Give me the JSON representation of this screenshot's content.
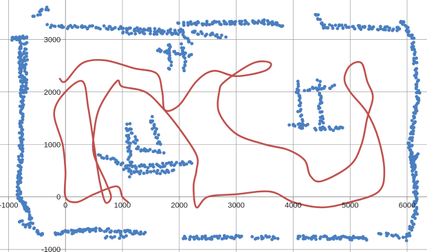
{
  "chart_data": {
    "type": "scatter",
    "xlim": [
      -1150,
      6350
    ],
    "ylim": [
      -1050,
      3750
    ],
    "x_ticks": [
      -1000,
      0,
      1000,
      2000,
      3000,
      4000,
      5000,
      6000
    ],
    "y_ticks": [
      -1000,
      0,
      1000,
      2000,
      3000
    ],
    "x_tick_labels": [
      "-1000",
      "0",
      "1000",
      "2000",
      "3000",
      "4000",
      "5000",
      "6000"
    ],
    "y_tick_labels": [
      "-1000",
      "0",
      "1000",
      "2000",
      "3000"
    ],
    "grid": true,
    "colors": {
      "points": "#4a7fc0",
      "path": "#c0504d",
      "grid": "#8c8c8c",
      "axis": "#8c8c8c"
    },
    "series": [
      {
        "kind": "scatter-segments",
        "segments": [
          {
            "from": [
              -950,
              3000
            ],
            "to": [
              -700,
              3050
            ],
            "n": 20
          },
          {
            "from": [
              -800,
              2950
            ],
            "to": [
              -760,
              2000
            ],
            "n": 55
          },
          {
            "from": [
              -700,
              2950
            ],
            "to": [
              -700,
              2000
            ],
            "n": 30
          },
          {
            "from": [
              -760,
              2000
            ],
            "to": [
              -780,
              1000
            ],
            "n": 50
          },
          {
            "from": [
              -780,
              1000
            ],
            "to": [
              -820,
              0
            ],
            "n": 50
          },
          {
            "from": [
              -820,
              0
            ],
            "to": [
              -700,
              -200
            ],
            "n": 20
          },
          {
            "from": [
              -700,
              -150
            ],
            "to": [
              -600,
              -500
            ],
            "n": 20
          },
          {
            "from": [
              -800,
              -450
            ],
            "to": [
              -600,
              -600
            ],
            "n": 12
          },
          {
            "from": [
              -550,
              -600
            ],
            "to": [
              -400,
              -750
            ],
            "n": 12
          },
          {
            "from": [
              -300,
              3600
            ],
            "to": [
              -550,
              3450
            ],
            "n": 12
          },
          {
            "from": [
              -200,
              -700
            ],
            "to": [
              500,
              -620
            ],
            "n": 40
          },
          {
            "from": [
              500,
              -620
            ],
            "to": [
              1400,
              -690
            ],
            "n": 40
          },
          {
            "from": [
              700,
              -760
            ],
            "to": [
              1100,
              -770
            ],
            "n": 10
          },
          {
            "from": [
              2100,
              -780
            ],
            "to": [
              3100,
              -760
            ],
            "n": 45
          },
          {
            "from": [
              3300,
              -770
            ],
            "to": [
              3700,
              -780
            ],
            "n": 15
          },
          {
            "from": [
              4100,
              -770
            ],
            "to": [
              5300,
              -790
            ],
            "n": 55
          },
          {
            "from": [
              5500,
              -700
            ],
            "to": [
              5900,
              -760
            ],
            "n": 12
          },
          {
            "from": [
              -300,
              3250
            ],
            "to": [
              800,
              3220
            ],
            "n": 35
          },
          {
            "from": [
              800,
              3220
            ],
            "to": [
              2000,
              3150
            ],
            "n": 45
          },
          {
            "from": [
              2000,
              3300
            ],
            "to": [
              3400,
              3330
            ],
            "n": 60
          },
          {
            "from": [
              3400,
              3350
            ],
            "to": [
              3800,
              3270
            ],
            "n": 25
          },
          {
            "from": [
              1000,
              3130
            ],
            "to": [
              2000,
              3130
            ],
            "n": 25
          },
          {
            "from": [
              2000,
              3200
            ],
            "to": [
              2200,
              2900
            ],
            "n": 12
          },
          {
            "from": [
              1600,
              2800
            ],
            "to": [
              2200,
              2700
            ],
            "n": 22
          },
          {
            "from": [
              1800,
              2900
            ],
            "to": [
              1850,
              2450
            ],
            "n": 15
          },
          {
            "from": [
              2050,
              2900
            ],
            "to": [
              2100,
              2400
            ],
            "n": 15
          },
          {
            "from": [
              2200,
              3150
            ],
            "to": [
              2800,
              3050
            ],
            "n": 20
          },
          {
            "from": [
              4400,
              3500
            ],
            "to": [
              4500,
              3300
            ],
            "n": 10
          },
          {
            "from": [
              4500,
              3250
            ],
            "to": [
              5900,
              3200
            ],
            "n": 55
          },
          {
            "from": [
              5900,
              3350
            ],
            "to": [
              6100,
              3000
            ],
            "n": 20
          },
          {
            "from": [
              6100,
              2950
            ],
            "to": [
              6200,
              2000
            ],
            "n": 35
          },
          {
            "from": [
              6200,
              2000
            ],
            "to": [
              6050,
              1000
            ],
            "n": 40
          },
          {
            "from": [
              6050,
              1000
            ],
            "to": [
              6150,
              300
            ],
            "n": 40
          },
          {
            "from": [
              6150,
              300
            ],
            "to": [
              6150,
              -300
            ],
            "n": 30
          },
          {
            "from": [
              6150,
              -300
            ],
            "to": [
              6000,
              -820
            ],
            "n": 20
          },
          {
            "from": [
              6050,
              600
            ],
            "to": [
              6200,
              800
            ],
            "n": 15
          },
          {
            "from": [
              1100,
              1300
            ],
            "to": [
              1150,
              400
            ],
            "n": 30
          },
          {
            "from": [
              1100,
              1400
            ],
            "to": [
              1300,
              900
            ],
            "n": 15
          },
          {
            "from": [
              1500,
              1500
            ],
            "to": [
              1650,
              1000
            ],
            "n": 20
          },
          {
            "from": [
              1250,
              900
            ],
            "to": [
              1700,
              850
            ],
            "n": 15
          },
          {
            "from": [
              600,
              800
            ],
            "to": [
              1100,
              600
            ],
            "n": 20
          },
          {
            "from": [
              1000,
              550
            ],
            "to": [
              2200,
              650
            ],
            "n": 50
          },
          {
            "from": [
              1200,
              450
            ],
            "to": [
              1900,
              480
            ],
            "n": 25
          },
          {
            "from": [
              4050,
              2200
            ],
            "to": [
              4150,
              1300
            ],
            "n": 25
          },
          {
            "from": [
              4200,
              2050
            ],
            "to": [
              4700,
              2100
            ],
            "n": 18
          },
          {
            "from": [
              4450,
              2200
            ],
            "to": [
              4500,
              1300
            ],
            "n": 30
          },
          {
            "from": [
              3950,
              1350
            ],
            "to": [
              4250,
              1350
            ],
            "n": 12
          },
          {
            "from": [
              4400,
              1300
            ],
            "to": [
              4900,
              1300
            ],
            "n": 18
          }
        ]
      },
      {
        "kind": "path",
        "points": [
          [
            -100,
            2250
          ],
          [
            0,
            2200
          ],
          [
            300,
            2550
          ],
          [
            700,
            2600
          ],
          [
            1200,
            2450
          ],
          [
            1600,
            2350
          ],
          [
            1700,
            2000
          ],
          [
            1750,
            1650
          ],
          [
            2000,
            1750
          ],
          [
            2300,
            2200
          ],
          [
            2600,
            2400
          ],
          [
            3000,
            2300
          ],
          [
            3500,
            2400
          ],
          [
            3600,
            2550
          ],
          [
            3300,
            2550
          ],
          [
            2800,
            2200
          ],
          [
            2700,
            2000
          ],
          [
            2700,
            1600
          ],
          [
            3000,
            1200
          ],
          [
            3500,
            1000
          ],
          [
            3900,
            900
          ],
          [
            4200,
            700
          ],
          [
            4300,
            400
          ],
          [
            4500,
            300
          ],
          [
            5000,
            600
          ],
          [
            5200,
            1000
          ],
          [
            5300,
            1500
          ],
          [
            5400,
            1900
          ],
          [
            5300,
            2200
          ],
          [
            5200,
            2550
          ],
          [
            5000,
            2500
          ],
          [
            4900,
            2250
          ],
          [
            5000,
            2000
          ],
          [
            5300,
            1600
          ],
          [
            5500,
            1100
          ],
          [
            5600,
            500
          ],
          [
            5500,
            100
          ],
          [
            5000,
            -100
          ],
          [
            4500,
            -200
          ],
          [
            4000,
            -100
          ],
          [
            3600,
            100
          ],
          [
            3000,
            50
          ],
          [
            2500,
            0
          ],
          [
            2300,
            -200
          ],
          [
            2250,
            200
          ],
          [
            2300,
            500
          ],
          [
            2300,
            800
          ],
          [
            2000,
            1300
          ],
          [
            1700,
            1700
          ],
          [
            1400,
            2000
          ],
          [
            1000,
            2100
          ],
          [
            900,
            2200
          ],
          [
            600,
            1700
          ],
          [
            500,
            1200
          ],
          [
            500,
            800
          ],
          [
            700,
            300
          ],
          [
            800,
            0
          ],
          [
            700,
            -100
          ],
          [
            600,
            300
          ],
          [
            500,
            1000
          ],
          [
            400,
            1700
          ],
          [
            300,
            2200
          ],
          [
            0,
            2000
          ],
          [
            -200,
            1600
          ],
          [
            -50,
            1000
          ],
          [
            0,
            500
          ],
          [
            0,
            0
          ],
          [
            200,
            -100
          ],
          [
            500,
            50
          ],
          [
            900,
            200
          ],
          [
            1000,
            0
          ],
          [
            1100,
            -100
          ]
        ]
      }
    ]
  }
}
